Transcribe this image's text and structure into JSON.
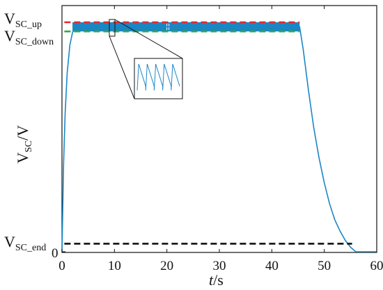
{
  "chart_data": {
    "type": "line",
    "title": "",
    "xlabel_italic": "t",
    "xlabel_unit": "/s",
    "ylabel_main": "V",
    "ylabel_sub": "SC",
    "ylabel_unit": "/V",
    "xlim": [
      0,
      60
    ],
    "x_ticks": [
      "0",
      "10",
      "20",
      "30",
      "40",
      "50",
      "60"
    ],
    "y_ticks": [
      "0"
    ],
    "grid": false,
    "levels": [
      {
        "main": "V",
        "sub": "SC_up",
        "value": 1.0,
        "color": "#e8262a",
        "dash": true
      },
      {
        "main": "V",
        "sub": "SC_down",
        "value": 0.96,
        "color": "#2fa84f",
        "dash": true
      },
      {
        "main": "V",
        "sub": "SC_end",
        "value": 0.035,
        "color": "#111111",
        "dash": true
      }
    ],
    "series": [
      {
        "color": "#1a86c4",
        "x": [
          0,
          0.3,
          0.6,
          1.0,
          1.5,
          2.0,
          2.5,
          3.0,
          45.3,
          46.0,
          47.0,
          48.0,
          49.0,
          50.0,
          51.0,
          52.0,
          53.0,
          54.0,
          55.0,
          56.0,
          58.0,
          60.0
        ],
        "y": [
          0,
          0.38,
          0.6,
          0.78,
          0.9,
          0.955,
          0.975,
          0.98,
          0.98,
          0.88,
          0.7,
          0.54,
          0.41,
          0.3,
          0.21,
          0.14,
          0.09,
          0.05,
          0.02,
          0.0,
          0.0,
          0.0
        ]
      }
    ],
    "oscillation_band": {
      "x_start": 2.0,
      "x_end": 45.3,
      "y_low": 0.96,
      "y_high": 1.0,
      "color": "#1a86c4"
    },
    "inset": {
      "description_zoom_window": [
        9.5,
        10.5
      ],
      "color": "#1a86c4"
    }
  }
}
